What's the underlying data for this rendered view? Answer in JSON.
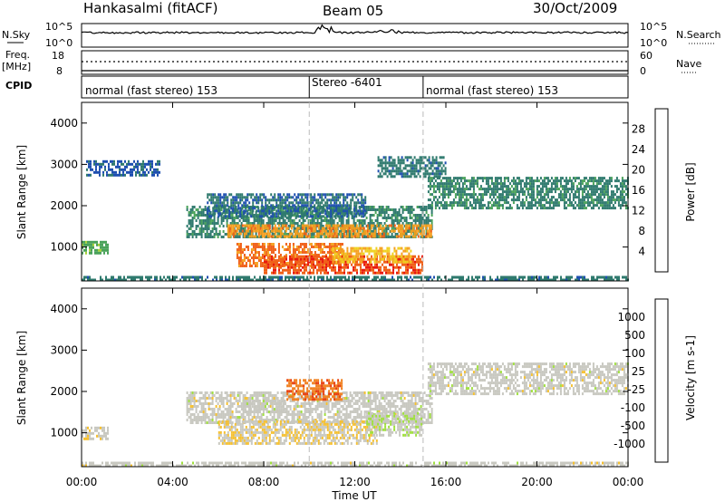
{
  "header": {
    "station": "Hankasalmi (fitACF)",
    "beam": "Beam 05",
    "date": "30/Oct/2009"
  },
  "nsky_panel": {
    "left_label": "N.Sky",
    "right_label": "N.Search",
    "left_ticks": [
      "10^5",
      "10^0"
    ],
    "right_ticks": [
      "10^5",
      "10^0"
    ]
  },
  "freq_panel": {
    "left_label_1": "Freq.",
    "left_label_2": "[MHz]",
    "left_ticks": [
      "18",
      "8"
    ],
    "right_ticks": [
      "60",
      "0"
    ],
    "right_label": "Nave",
    "cpid_label": "CPID"
  },
  "cpid_segments": [
    {
      "label": "normal (fast stereo) 153",
      "start_hour": 0,
      "end_hour": 10.0
    },
    {
      "label": "Stereo -6401",
      "start_hour": 10.0,
      "end_hour": 15.0
    },
    {
      "label": "normal (fast stereo) 153",
      "start_hour": 15.0,
      "end_hour": 24.0
    }
  ],
  "power_panel": {
    "ylabel": "Slant Range [km]",
    "yticks": [
      "1000",
      "2000",
      "3000",
      "4000"
    ],
    "colorbar_label": "Power [dB]",
    "colorbar_ticks": [
      "4",
      "8",
      "12",
      "16",
      "20",
      "24",
      "28"
    ],
    "colors": [
      "#0000ff",
      "#1e4fb0",
      "#2f7a6e",
      "#4aa25a",
      "#a8d23a",
      "#f0d020",
      "#f5a020",
      "#f06018",
      "#e81a10"
    ]
  },
  "velocity_panel": {
    "ylabel": "Slant Range [km]",
    "yticks": [
      "1000",
      "2000",
      "3000",
      "4000"
    ],
    "colorbar_label": "Velocity [m s-1]",
    "colorbar_ticks": [
      "1000",
      "500",
      "100",
      "25",
      "-25",
      "-100",
      "-500",
      "-1000"
    ],
    "colors": [
      "#2040c0",
      "#2f6a6a",
      "#3aa040",
      "#a0e040",
      "#c8c8c0",
      "#f5c030",
      "#f08020",
      "#e84010",
      "#e81010"
    ]
  },
  "x_axis": {
    "ticks": [
      "00:00",
      "04:00",
      "08:00",
      "12:00",
      "16:00",
      "20:00",
      "00:00"
    ],
    "label": "Time UT"
  },
  "chart_data": {
    "type": "heatmap",
    "title": "Hankasalmi (fitACF)",
    "subtitle": "Beam 05",
    "date": "30/Oct/2009",
    "xlabel": "Time UT",
    "ylabel": "Slant Range [km]",
    "xlim": [
      0,
      24
    ],
    "ylim": [
      180,
      4500
    ],
    "panels": [
      {
        "name": "Power",
        "unit": "dB",
        "color_range": [
          0,
          30
        ],
        "regions": [
          {
            "t": [
              0,
              1.2
            ],
            "r": [
              850,
              1150
            ],
            "value": 12
          },
          {
            "t": [
              0,
              24
            ],
            "r": [
              200,
              300
            ],
            "value": 8
          },
          {
            "t": [
              4.6,
              15.4
            ],
            "r": [
              1200,
              2000
            ],
            "value": 9
          },
          {
            "t": [
              5.5,
              12.5
            ],
            "r": [
              1700,
              2300
            ],
            "value": 7
          },
          {
            "t": [
              6.4,
              15.4
            ],
            "r": [
              1200,
              1550
            ],
            "value": 22
          },
          {
            "t": [
              6.8,
              11.5
            ],
            "r": [
              500,
              1100
            ],
            "value": 24
          },
          {
            "t": [
              8.0,
              15.0
            ],
            "r": [
              350,
              800
            ],
            "value": 26
          },
          {
            "t": [
              11.0,
              14.5
            ],
            "r": [
              600,
              1000
            ],
            "value": 20
          },
          {
            "t": [
              15.2,
              24
            ],
            "r": [
              1900,
              2700
            ],
            "value": 9
          },
          {
            "t": [
              13.0,
              16.0
            ],
            "r": [
              2700,
              3200
            ],
            "value": 8
          },
          {
            "t": [
              0.2,
              3.5
            ],
            "r": [
              2700,
              3100
            ],
            "value": 6
          }
        ]
      },
      {
        "name": "Velocity",
        "unit": "m s-1",
        "color_range": [
          -1000,
          1000
        ],
        "regions": [
          {
            "t": [
              0,
              24
            ],
            "r": [
              200,
              300
            ],
            "value": 0
          },
          {
            "t": [
              4.6,
              15.4
            ],
            "r": [
              1200,
              2000
            ],
            "value": 0
          },
          {
            "t": [
              15.2,
              24
            ],
            "r": [
              1900,
              2700
            ],
            "value": 0
          },
          {
            "t": [
              6.0,
              13.0
            ],
            "r": [
              700,
              1300
            ],
            "value": -90
          },
          {
            "t": [
              9.0,
              11.5
            ],
            "r": [
              1800,
              2300
            ],
            "value": -500
          },
          {
            "t": [
              12.5,
              15.0
            ],
            "r": [
              900,
              1500
            ],
            "value": 60
          },
          {
            "t": [
              0,
              1.2
            ],
            "r": [
              850,
              1150
            ],
            "value": -40
          },
          {
            "t": [
              7.0,
              9.0
            ],
            "r": [
              1500,
              1800
            ],
            "value": 30
          }
        ]
      }
    ]
  }
}
